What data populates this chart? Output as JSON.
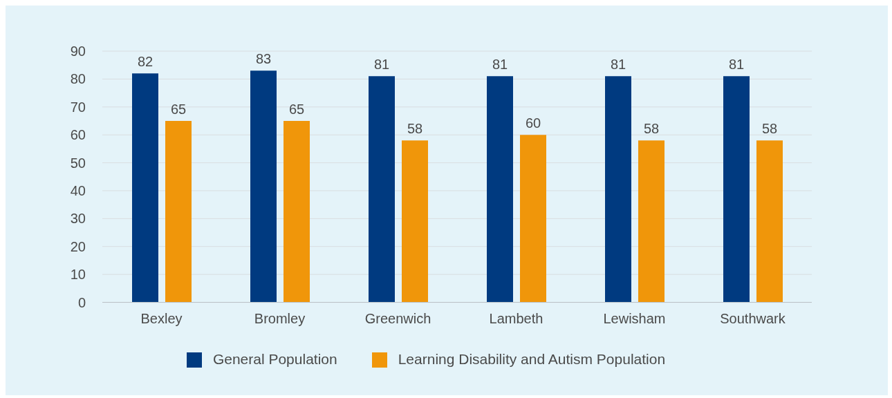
{
  "chart_data": {
    "type": "bar",
    "categories": [
      "Bexley",
      "Bromley",
      "Greenwich",
      "Lambeth",
      "Lewisham",
      "Southwark"
    ],
    "series": [
      {
        "name": "General Population",
        "color": "#003a80",
        "values": [
          82,
          83,
          81,
          81,
          81,
          81
        ]
      },
      {
        "name": "Learning Disability and Autism Population",
        "color": "#f0960a",
        "values": [
          65,
          65,
          58,
          60,
          58,
          58
        ]
      }
    ],
    "ylim": [
      0,
      90
    ],
    "yticks": [
      0,
      10,
      20,
      30,
      40,
      50,
      60,
      70,
      80,
      90
    ],
    "grid": "y",
    "legend": "bottom",
    "data_labels": true
  }
}
